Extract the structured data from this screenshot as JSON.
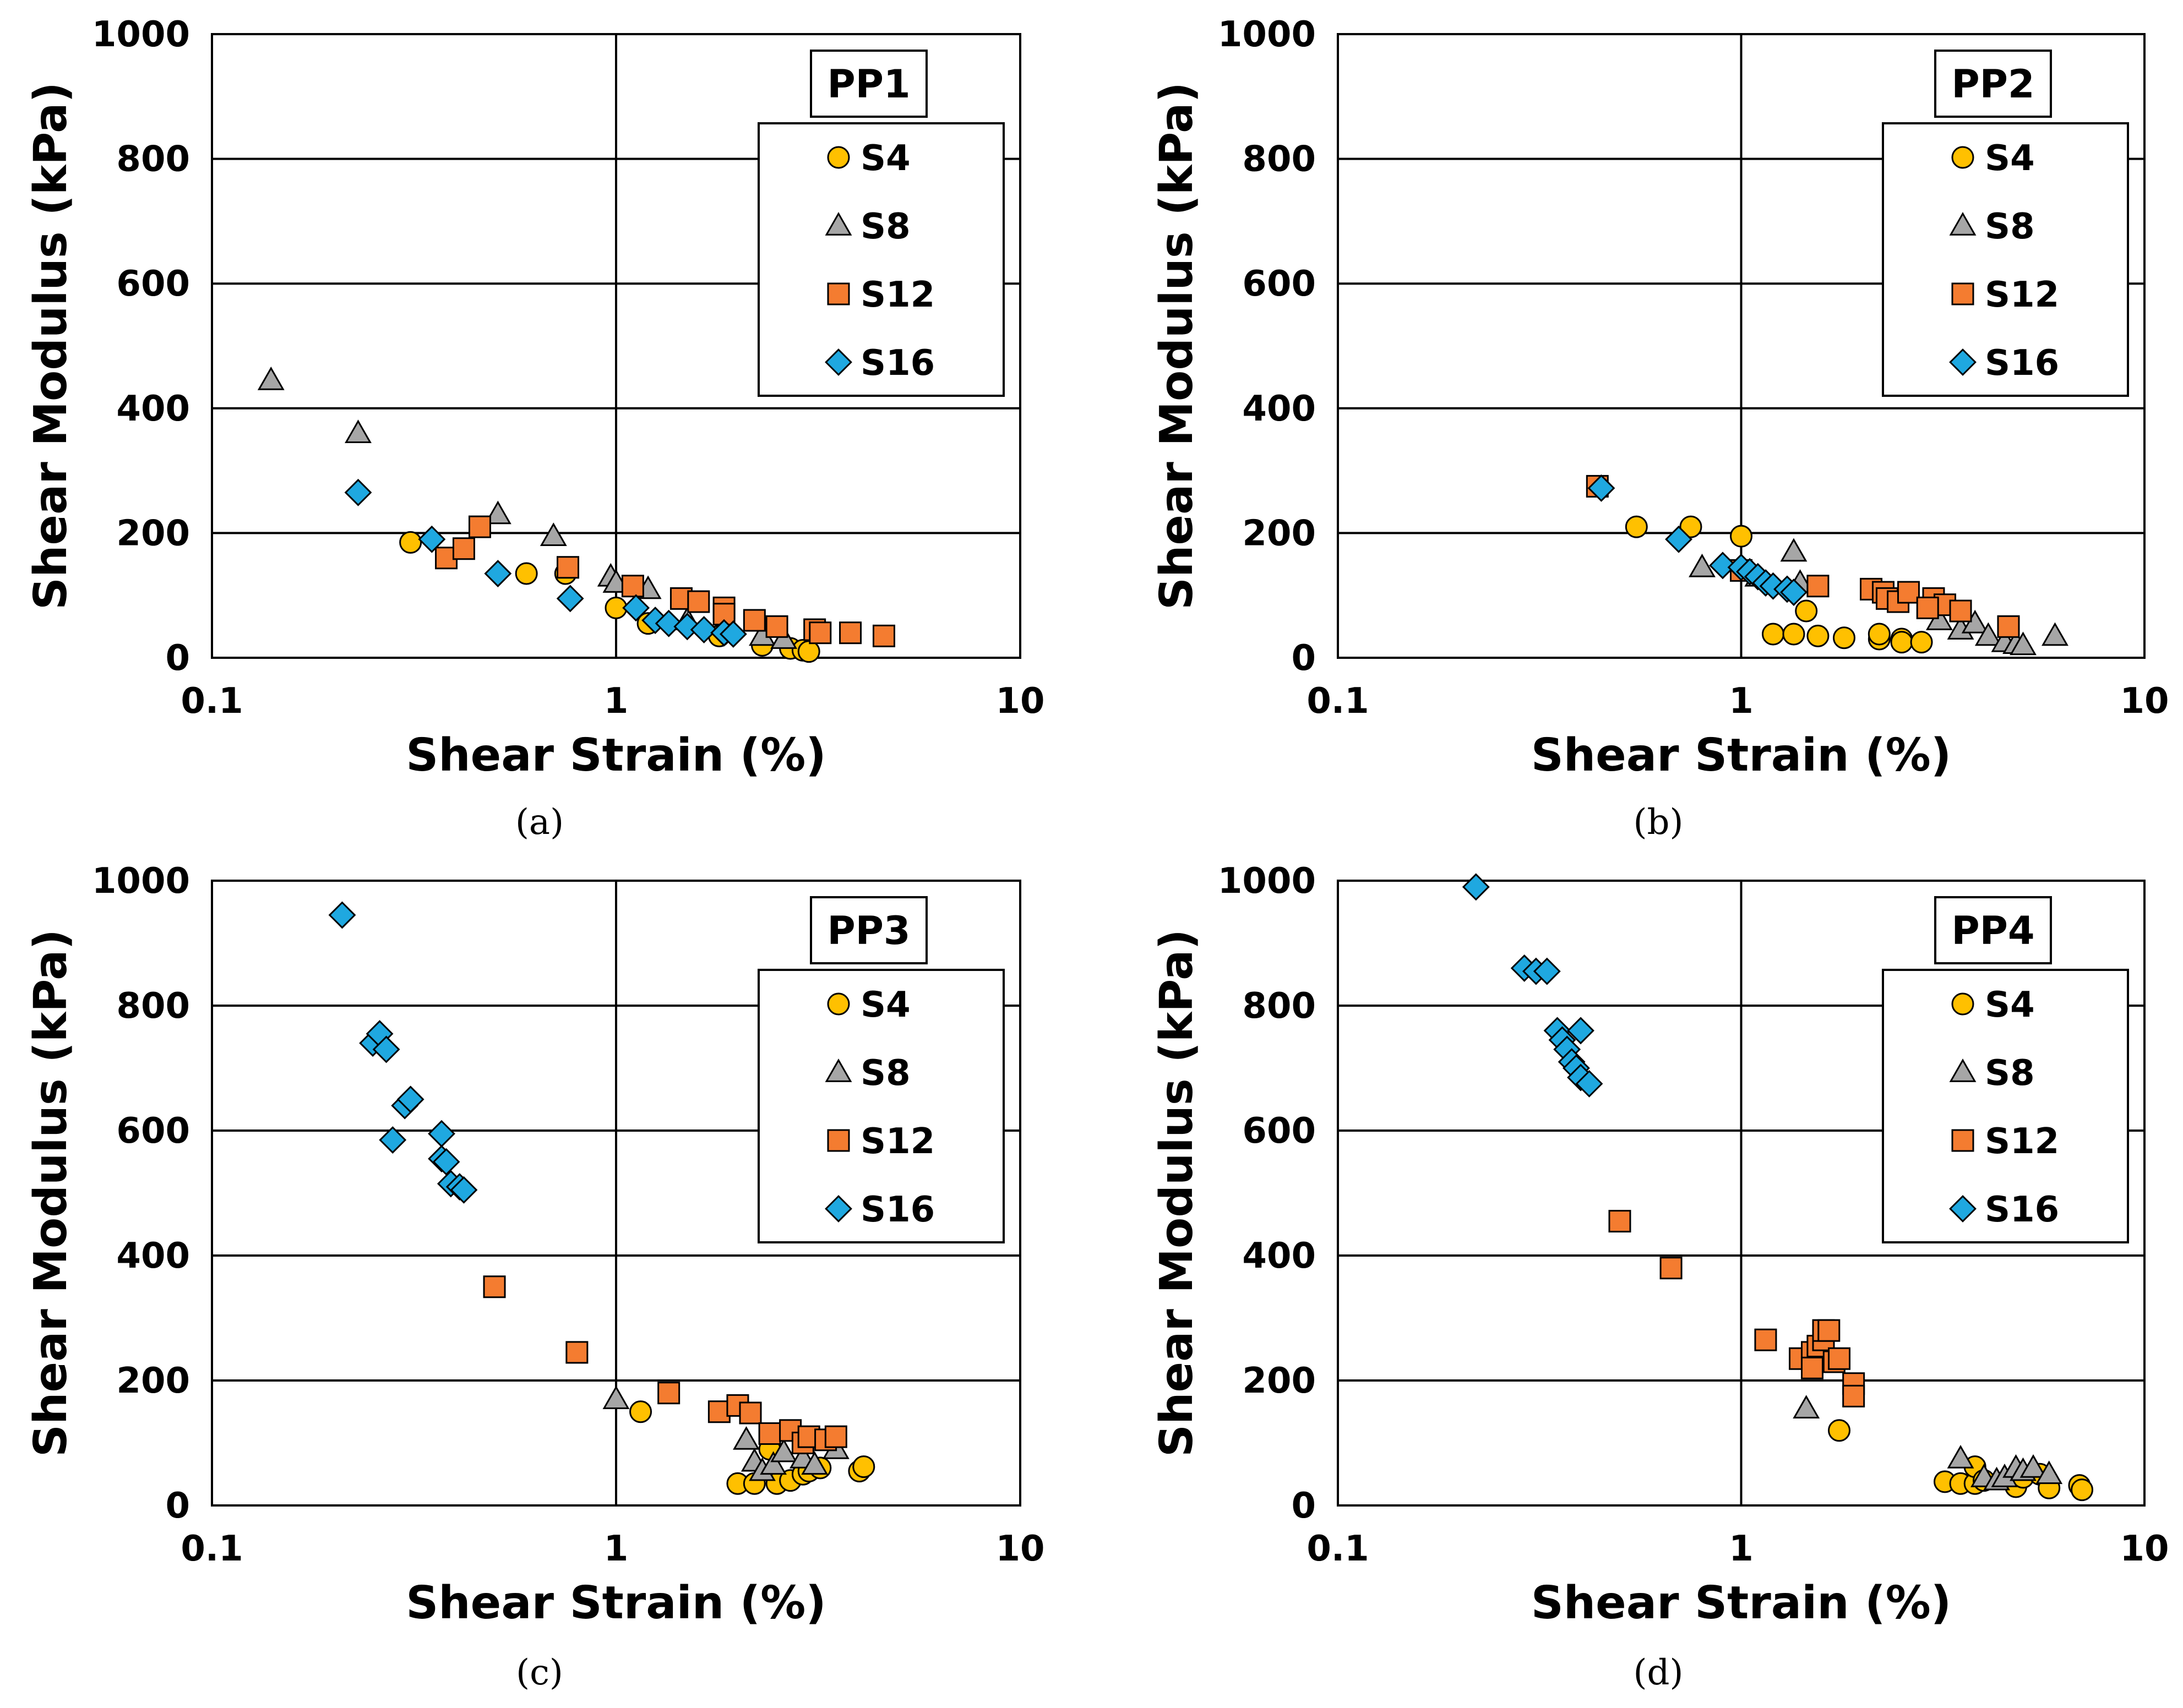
{
  "figure": {
    "captions": [
      "(a)",
      "(b)",
      "(c)",
      "(d)"
    ]
  },
  "series_styles": [
    {
      "name": "S4",
      "marker": "circle",
      "color": "#FFC000"
    },
    {
      "name": "S8",
      "marker": "triangle",
      "color": "#A6A6A6"
    },
    {
      "name": "S12",
      "marker": "square",
      "color": "#F47C30"
    },
    {
      "name": "S16",
      "marker": "diamond",
      "color": "#1FA8E0"
    }
  ],
  "chart_data": [
    {
      "type": "scatter",
      "title": "PP1",
      "caption": "(a)",
      "xlabel": "Shear Strain (%)",
      "ylabel": "Shear Modulus (kPa)",
      "xscale": "log",
      "xlim": [
        0.1,
        10
      ],
      "ylim": [
        0,
        1000
      ],
      "xticks": [
        "0.1",
        "1",
        "10"
      ],
      "yticks": [
        "0",
        "200",
        "400",
        "600",
        "800",
        "1000"
      ],
      "legend": "top-right",
      "series": [
        {
          "name": "S4",
          "points": [
            [
              0.31,
              185
            ],
            [
              0.6,
              135
            ],
            [
              0.75,
              135
            ],
            [
              1.0,
              80
            ],
            [
              1.2,
              55
            ],
            [
              1.8,
              35
            ],
            [
              2.3,
              20
            ],
            [
              2.7,
              15
            ],
            [
              2.9,
              12
            ],
            [
              3.0,
              10
            ]
          ]
        },
        {
          "name": "S8",
          "points": [
            [
              0.14,
              445
            ],
            [
              0.23,
              360
            ],
            [
              0.51,
              230
            ],
            [
              0.7,
              195
            ],
            [
              0.97,
              130
            ],
            [
              1.0,
              120
            ],
            [
              1.2,
              110
            ],
            [
              1.5,
              60
            ],
            [
              2.3,
              35
            ],
            [
              2.6,
              30
            ]
          ]
        },
        {
          "name": "S12",
          "points": [
            [
              0.38,
              160
            ],
            [
              0.42,
              175
            ],
            [
              0.46,
              210
            ],
            [
              0.76,
              145
            ],
            [
              1.1,
              115
            ],
            [
              1.45,
              95
            ],
            [
              1.6,
              90
            ],
            [
              1.85,
              80
            ],
            [
              1.85,
              70
            ],
            [
              2.2,
              60
            ],
            [
              2.5,
              50
            ],
            [
              3.1,
              45
            ],
            [
              3.2,
              40
            ],
            [
              3.8,
              40
            ],
            [
              4.6,
              35
            ]
          ]
        },
        {
          "name": "S16",
          "points": [
            [
              0.23,
              265
            ],
            [
              0.35,
              190
            ],
            [
              0.51,
              135
            ],
            [
              0.77,
              95
            ],
            [
              1.12,
              80
            ],
            [
              1.25,
              60
            ],
            [
              1.35,
              55
            ],
            [
              1.5,
              50
            ],
            [
              1.65,
              45
            ],
            [
              1.85,
              40
            ],
            [
              1.95,
              38
            ]
          ]
        }
      ]
    },
    {
      "type": "scatter",
      "title": "PP2",
      "caption": "(b)",
      "xlabel": "Shear Strain (%)",
      "ylabel": "Shear Modulus (kPa)",
      "xscale": "log",
      "xlim": [
        0.1,
        10
      ],
      "ylim": [
        0,
        1000
      ],
      "xticks": [
        "0.1",
        "1",
        "10"
      ],
      "yticks": [
        "0",
        "200",
        "400",
        "600",
        "800",
        "1000"
      ],
      "legend": "top-right",
      "series": [
        {
          "name": "S4",
          "points": [
            [
              0.55,
              210
            ],
            [
              0.75,
              210
            ],
            [
              1.0,
              195
            ],
            [
              1.45,
              75
            ],
            [
              1.2,
              38
            ],
            [
              1.35,
              38
            ],
            [
              1.55,
              35
            ],
            [
              1.8,
              32
            ],
            [
              2.2,
              30
            ],
            [
              2.2,
              38
            ],
            [
              2.5,
              30
            ],
            [
              2.5,
              25
            ],
            [
              2.8,
              25
            ]
          ]
        },
        {
          "name": "S8",
          "points": [
            [
              0.8,
              145
            ],
            [
              1.1,
              130
            ],
            [
              1.35,
              170
            ],
            [
              1.4,
              120
            ],
            [
              3.1,
              60
            ],
            [
              3.5,
              45
            ],
            [
              3.8,
              55
            ],
            [
              4.1,
              35
            ],
            [
              4.5,
              25
            ],
            [
              4.8,
              22
            ],
            [
              5.0,
              20
            ],
            [
              6.0,
              35
            ]
          ]
        },
        {
          "name": "S12",
          "points": [
            [
              0.44,
              275
            ],
            [
              1.0,
              140
            ],
            [
              1.55,
              115
            ],
            [
              2.1,
              110
            ],
            [
              2.25,
              105
            ],
            [
              2.3,
              95
            ],
            [
              2.45,
              90
            ],
            [
              2.6,
              105
            ],
            [
              3.0,
              95
            ],
            [
              3.2,
              85
            ],
            [
              2.9,
              80
            ],
            [
              3.5,
              75
            ],
            [
              4.6,
              50
            ]
          ]
        },
        {
          "name": "S16",
          "points": [
            [
              0.45,
              272
            ],
            [
              0.7,
              190
            ],
            [
              0.9,
              148
            ],
            [
              1.0,
              145
            ],
            [
              1.05,
              138
            ],
            [
              1.1,
              130
            ],
            [
              1.15,
              120
            ],
            [
              1.2,
              115
            ],
            [
              1.3,
              110
            ],
            [
              1.35,
              105
            ]
          ]
        }
      ]
    },
    {
      "type": "scatter",
      "title": "PP3",
      "caption": "(c)",
      "xlabel": "Shear Strain (%)",
      "ylabel": "Shear Modulus (kPa)",
      "xscale": "log",
      "xlim": [
        0.1,
        10
      ],
      "ylim": [
        0,
        1000
      ],
      "xticks": [
        "0.1",
        "1",
        "10"
      ],
      "yticks": [
        "0",
        "200",
        "400",
        "600",
        "800",
        "1000"
      ],
      "legend": "top-right",
      "series": [
        {
          "name": "S4",
          "points": [
            [
              1.15,
              150
            ],
            [
              2.0,
              35
            ],
            [
              2.2,
              35
            ],
            [
              2.4,
              90
            ],
            [
              2.5,
              35
            ],
            [
              2.7,
              40
            ],
            [
              2.9,
              50
            ],
            [
              3.0,
              55
            ],
            [
              3.2,
              60
            ],
            [
              4.0,
              55
            ],
            [
              4.1,
              62
            ]
          ]
        },
        {
          "name": "S8",
          "points": [
            [
              1.0,
              170
            ],
            [
              2.1,
              105
            ],
            [
              2.2,
              70
            ],
            [
              2.3,
              55
            ],
            [
              2.45,
              65
            ],
            [
              2.6,
              85
            ],
            [
              2.9,
              75
            ],
            [
              3.1,
              65
            ],
            [
              3.5,
              90
            ]
          ]
        },
        {
          "name": "S12",
          "points": [
            [
              0.5,
              350
            ],
            [
              0.8,
              245
            ],
            [
              1.35,
              180
            ],
            [
              1.8,
              150
            ],
            [
              2.0,
              160
            ],
            [
              2.15,
              148
            ],
            [
              2.4,
              115
            ],
            [
              2.7,
              120
            ],
            [
              2.9,
              100
            ],
            [
              3.0,
              110
            ],
            [
              3.3,
              105
            ],
            [
              3.5,
              110
            ]
          ]
        },
        {
          "name": "S16",
          "points": [
            [
              0.21,
              945
            ],
            [
              0.25,
              740
            ],
            [
              0.26,
              755
            ],
            [
              0.27,
              730
            ],
            [
              0.28,
              585
            ],
            [
              0.3,
              640
            ],
            [
              0.31,
              650
            ],
            [
              0.37,
              595
            ],
            [
              0.37,
              555
            ],
            [
              0.38,
              550
            ],
            [
              0.39,
              515
            ],
            [
              0.41,
              510
            ],
            [
              0.42,
              505
            ]
          ]
        }
      ]
    },
    {
      "type": "scatter",
      "title": "PP4",
      "caption": "(d)",
      "xlabel": "Shear Strain (%)",
      "ylabel": "Shear Modulus (kPa)",
      "xscale": "log",
      "xlim": [
        0.1,
        10
      ],
      "ylim": [
        0,
        1000
      ],
      "xticks": [
        "0.1",
        "1",
        "10"
      ],
      "yticks": [
        "0",
        "200",
        "400",
        "600",
        "800",
        "1000"
      ],
      "legend": "top-right",
      "series": [
        {
          "name": "S4",
          "points": [
            [
              1.75,
              120
            ],
            [
              3.2,
              38
            ],
            [
              3.5,
              35
            ],
            [
              3.8,
              35
            ],
            [
              3.8,
              62
            ],
            [
              4.0,
              40
            ],
            [
              4.8,
              30
            ],
            [
              5.0,
              45
            ],
            [
              5.5,
              50
            ],
            [
              5.8,
              28
            ],
            [
              6.9,
              32
            ],
            [
              7.0,
              25
            ]
          ]
        },
        {
          "name": "S8",
          "points": [
            [
              1.45,
              155
            ],
            [
              3.5,
              75
            ],
            [
              4.0,
              45
            ],
            [
              4.3,
              40
            ],
            [
              4.5,
              45
            ],
            [
              4.8,
              60
            ],
            [
              5.0,
              55
            ],
            [
              5.3,
              60
            ],
            [
              5.8,
              50
            ]
          ]
        },
        {
          "name": "S12",
          "points": [
            [
              0.5,
              455
            ],
            [
              0.67,
              380
            ],
            [
              1.15,
              265
            ],
            [
              1.4,
              235
            ],
            [
              1.5,
              245
            ],
            [
              1.5,
              220
            ],
            [
              1.55,
              255
            ],
            [
              1.6,
              265
            ],
            [
              1.6,
              280
            ],
            [
              1.65,
              280
            ],
            [
              1.7,
              230
            ],
            [
              1.75,
              235
            ],
            [
              1.9,
              195
            ],
            [
              1.9,
              175
            ]
          ]
        },
        {
          "name": "S16",
          "points": [
            [
              0.22,
              990
            ],
            [
              0.29,
              860
            ],
            [
              0.31,
              855
            ],
            [
              0.33,
              855
            ],
            [
              0.35,
              760
            ],
            [
              0.36,
              745
            ],
            [
              0.37,
              730
            ],
            [
              0.38,
              710
            ],
            [
              0.39,
              700
            ],
            [
              0.4,
              760
            ],
            [
              0.4,
              685
            ],
            [
              0.42,
              675
            ]
          ]
        }
      ]
    }
  ]
}
